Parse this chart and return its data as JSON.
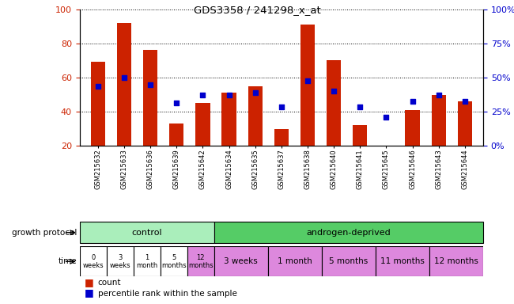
{
  "title": "GDS3358 / 241298_x_at",
  "samples": [
    "GSM215632",
    "GSM215633",
    "GSM215636",
    "GSM215639",
    "GSM215642",
    "GSM215634",
    "GSM215635",
    "GSM215637",
    "GSM215638",
    "GSM215640",
    "GSM215641",
    "GSM215645",
    "GSM215646",
    "GSM215643",
    "GSM215644"
  ],
  "bar_values": [
    69,
    92,
    76,
    33,
    45,
    51,
    55,
    30,
    91,
    70,
    32,
    20,
    41,
    50,
    46
  ],
  "blue_values": [
    55,
    60,
    56,
    45,
    50,
    50,
    51,
    43,
    58,
    52,
    43,
    37,
    46,
    50,
    46
  ],
  "bar_color": "#cc2200",
  "blue_color": "#0000cc",
  "ylim_left": [
    20,
    100
  ],
  "yticks_left": [
    20,
    40,
    60,
    80,
    100
  ],
  "yticks_right": [
    0,
    25,
    50,
    75,
    100
  ],
  "ytick_labels_right": [
    "0%",
    "25%",
    "50%",
    "75%",
    "100%"
  ],
  "growth_protocol_label": "growth protocol",
  "time_label": "time",
  "control_label": "control",
  "androgen_label": "androgen-deprived",
  "control_color": "#aaeebb",
  "androgen_color": "#55cc66",
  "time_color_white": "#ffffff",
  "time_color_pink": "#dd88dd",
  "time_labels_control": [
    "0\nweeks",
    "3\nweeks",
    "1\nmonth",
    "5\nmonths",
    "12\nmonths"
  ],
  "time_colors_control": [
    "#ffffff",
    "#ffffff",
    "#ffffff",
    "#ffffff",
    "#dd88dd"
  ],
  "time_labels_androgen": [
    "3 weeks",
    "1 month",
    "5 months",
    "11 months",
    "12 months"
  ],
  "time_colors_androgen": [
    "#dd88dd",
    "#dd88dd",
    "#dd88dd",
    "#dd88dd",
    "#dd88dd"
  ],
  "andr_groups": [
    2,
    2,
    2,
    2,
    2
  ],
  "legend_count_color": "#cc2200",
  "legend_pct_color": "#0000cc",
  "label_color_left": "#cc2200",
  "label_color_right": "#0000cc",
  "n_control": 5,
  "n_total": 15
}
